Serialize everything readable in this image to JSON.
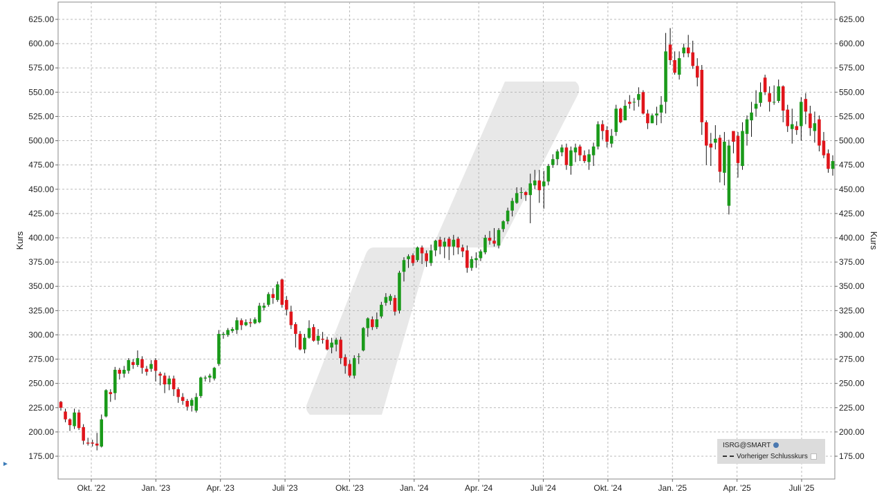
{
  "chart_data": {
    "type": "candlestick",
    "ylabel_left": "Kurs",
    "ylabel_right": "Kurs",
    "ylim": [
      160,
      640
    ],
    "yticks": [
      "625.00",
      "600.00",
      "575.00",
      "550.00",
      "525.00",
      "500.00",
      "475.00",
      "450.00",
      "425.00",
      "400.00",
      "375.00",
      "350.00",
      "325.00",
      "300.00",
      "275.00",
      "250.00",
      "225.00",
      "200.00",
      "175.00"
    ],
    "xticks": [
      "Okt. '22",
      "Jan. '23",
      "Apr. '23",
      "Juli '23",
      "Okt. '23",
      "Jan. '24",
      "Apr. '24",
      "Juli '24",
      "Okt. '24",
      "Jan. '25",
      "Apr. '25",
      "Juli '25"
    ],
    "grid": true,
    "legend": {
      "position": "bottom-right",
      "symbol": "ISRG@SMART",
      "previous_close_label": "Vorheriger Schlusskurs"
    },
    "colors": {
      "up": "#1a9a1a",
      "down": "#e0151b"
    },
    "candles": [
      [
        231,
        225,
        232,
        222
      ],
      [
        221,
        213,
        224,
        210
      ],
      [
        213,
        207,
        214,
        201
      ],
      [
        206,
        220,
        224,
        203
      ],
      [
        220,
        204,
        223,
        202
      ],
      [
        205,
        191,
        208,
        187
      ],
      [
        189,
        188,
        194,
        186
      ],
      [
        189,
        188,
        192,
        185
      ],
      [
        188,
        186,
        199,
        181
      ],
      [
        185,
        213,
        218,
        184
      ],
      [
        216,
        243,
        244,
        215
      ],
      [
        241,
        239,
        244,
        231
      ],
      [
        240,
        264,
        267,
        233
      ],
      [
        264,
        260,
        266,
        254
      ],
      [
        260,
        264,
        268,
        256
      ],
      [
        263,
        274,
        276,
        260
      ],
      [
        272,
        269,
        275,
        265
      ],
      [
        269,
        276,
        284,
        267
      ],
      [
        275,
        266,
        278,
        260
      ],
      [
        265,
        262,
        268,
        258
      ],
      [
        265,
        270,
        274,
        262
      ],
      [
        274,
        263,
        276,
        252
      ],
      [
        260,
        258,
        262,
        248
      ],
      [
        258,
        249,
        261,
        240
      ],
      [
        249,
        255,
        258,
        243
      ],
      [
        255,
        244,
        258,
        237
      ],
      [
        244,
        236,
        246,
        230
      ],
      [
        236,
        232,
        240,
        228
      ],
      [
        232,
        226,
        234,
        222
      ],
      [
        227,
        233,
        235,
        221
      ],
      [
        222,
        236,
        240,
        220
      ],
      [
        237,
        256,
        257,
        235
      ],
      [
        255,
        256,
        258,
        252
      ],
      [
        256,
        258,
        260,
        251
      ],
      [
        255,
        266,
        267,
        253
      ],
      [
        270,
        301,
        305,
        268
      ],
      [
        300,
        301,
        303,
        296
      ],
      [
        300,
        305,
        307,
        298
      ],
      [
        304,
        306,
        308,
        302
      ],
      [
        305,
        315,
        318,
        301
      ],
      [
        315,
        310,
        317,
        305
      ],
      [
        310,
        313,
        316,
        309
      ],
      [
        313,
        312,
        317,
        308
      ],
      [
        312,
        316,
        318,
        311
      ],
      [
        313,
        330,
        333,
        312
      ],
      [
        328,
        330,
        333,
        325
      ],
      [
        331,
        342,
        344,
        329
      ],
      [
        342,
        338,
        348,
        332
      ],
      [
        336,
        352,
        355,
        334
      ],
      [
        357,
        331,
        358,
        328
      ],
      [
        336,
        326,
        340,
        320
      ],
      [
        324,
        310,
        330,
        306
      ],
      [
        311,
        301,
        313,
        287
      ],
      [
        301,
        285,
        304,
        284
      ],
      [
        285,
        297,
        301,
        281
      ],
      [
        297,
        307,
        315,
        296
      ],
      [
        308,
        294,
        311,
        293
      ],
      [
        294,
        299,
        306,
        290
      ],
      [
        296,
        295,
        303,
        291
      ],
      [
        295,
        285,
        298,
        284
      ],
      [
        287,
        292,
        297,
        281
      ],
      [
        290,
        295,
        297,
        283
      ],
      [
        295,
        276,
        298,
        270
      ],
      [
        277,
        268,
        280,
        260
      ],
      [
        270,
        258,
        274,
        256
      ],
      [
        258,
        276,
        279,
        255
      ],
      [
        278,
        278,
        281,
        270
      ],
      [
        284,
        307,
        308,
        283
      ],
      [
        307,
        317,
        318,
        298
      ],
      [
        316,
        308,
        319,
        305
      ],
      [
        308,
        316,
        323,
        306
      ],
      [
        319,
        331,
        334,
        317
      ],
      [
        333,
        339,
        343,
        330
      ],
      [
        335,
        340,
        342,
        331
      ],
      [
        338,
        324,
        341,
        320
      ],
      [
        325,
        364,
        366,
        322
      ],
      [
        365,
        377,
        380,
        355
      ],
      [
        378,
        381,
        383,
        369
      ],
      [
        382,
        374,
        384,
        371
      ],
      [
        377,
        390,
        391,
        375
      ],
      [
        390,
        384,
        392,
        373
      ],
      [
        384,
        376,
        387,
        370
      ],
      [
        374,
        387,
        393,
        371
      ],
      [
        387,
        397,
        398,
        381
      ],
      [
        398,
        391,
        401,
        383
      ],
      [
        391,
        396,
        400,
        379
      ],
      [
        399,
        391,
        401,
        377
      ],
      [
        391,
        398,
        403,
        382
      ],
      [
        399,
        390,
        401,
        383
      ],
      [
        390,
        386,
        393,
        380
      ],
      [
        387,
        369,
        392,
        364
      ],
      [
        369,
        378,
        381,
        366
      ],
      [
        377,
        379,
        385,
        369
      ],
      [
        379,
        386,
        388,
        376
      ],
      [
        385,
        400,
        403,
        383
      ],
      [
        400,
        397,
        407,
        393
      ],
      [
        397,
        394,
        410,
        391
      ],
      [
        392,
        408,
        410,
        389
      ],
      [
        409,
        417,
        418,
        406
      ],
      [
        417,
        428,
        431,
        414
      ],
      [
        428,
        438,
        441,
        422
      ],
      [
        436,
        446,
        452,
        435
      ],
      [
        447,
        447,
        452,
        440
      ],
      [
        447,
        444,
        448,
        438
      ],
      [
        444,
        456,
        466,
        415
      ],
      [
        454,
        459,
        470,
        450
      ],
      [
        459,
        449,
        470,
        436
      ],
      [
        453,
        458,
        469,
        430
      ],
      [
        458,
        474,
        476,
        454
      ],
      [
        475,
        481,
        486,
        472
      ],
      [
        481,
        489,
        491,
        475
      ],
      [
        488,
        493,
        496,
        484
      ],
      [
        493,
        475,
        497,
        470
      ],
      [
        474,
        490,
        494,
        465
      ],
      [
        488,
        493,
        497,
        478
      ],
      [
        494,
        485,
        496,
        479
      ],
      [
        485,
        479,
        490,
        477
      ],
      [
        478,
        486,
        491,
        470
      ],
      [
        485,
        494,
        498,
        474
      ],
      [
        494,
        517,
        520,
        491
      ],
      [
        517,
        510,
        521,
        501
      ],
      [
        511,
        499,
        515,
        493
      ],
      [
        497,
        505,
        512,
        493
      ],
      [
        509,
        533,
        537,
        505
      ],
      [
        533,
        519,
        534,
        518
      ],
      [
        521,
        536,
        542,
        530
      ],
      [
        540,
        538,
        547,
        533
      ],
      [
        540,
        540,
        544,
        531
      ],
      [
        542,
        548,
        555,
        535
      ],
      [
        550,
        528,
        552,
        527
      ],
      [
        528,
        518,
        532,
        512
      ],
      [
        518,
        526,
        528,
        518
      ],
      [
        526,
        528,
        535,
        516
      ],
      [
        529,
        537,
        546,
        518
      ],
      [
        540,
        592,
        611,
        528
      ],
      [
        599,
        583,
        616,
        578
      ],
      [
        583,
        570,
        592,
        568
      ],
      [
        568,
        585,
        592,
        563
      ],
      [
        590,
        596,
        600,
        586
      ],
      [
        596,
        590,
        609,
        586
      ],
      [
        591,
        577,
        603,
        574
      ],
      [
        577,
        565,
        585,
        556
      ],
      [
        573,
        519,
        578,
        506
      ],
      [
        519,
        495,
        521,
        475
      ],
      [
        497,
        493,
        508,
        474
      ],
      [
        498,
        502,
        516,
        491
      ],
      [
        503,
        468,
        506,
        457
      ],
      [
        467,
        499,
        509,
        454
      ],
      [
        433,
        495,
        501,
        424
      ],
      [
        510,
        499,
        508,
        487
      ],
      [
        505,
        477,
        509,
        462
      ],
      [
        474,
        510,
        519,
        470
      ],
      [
        507,
        522,
        526,
        495
      ],
      [
        521,
        529,
        540,
        504
      ],
      [
        533,
        538,
        552,
        525
      ],
      [
        539,
        550,
        560,
        535
      ],
      [
        565,
        550,
        568,
        547
      ],
      [
        549,
        540,
        556,
        530
      ],
      [
        540,
        540,
        557,
        537
      ],
      [
        541,
        556,
        563,
        539
      ],
      [
        556,
        531,
        557,
        519
      ],
      [
        532,
        515,
        537,
        509
      ],
      [
        512,
        517,
        533,
        497
      ],
      [
        515,
        511,
        520,
        506
      ],
      [
        515,
        540,
        545,
        500
      ],
      [
        543,
        530,
        549,
        517
      ],
      [
        528,
        513,
        536,
        505
      ],
      [
        510,
        518,
        530,
        498
      ],
      [
        522,
        495,
        526,
        489
      ],
      [
        500,
        485,
        509,
        482
      ],
      [
        487,
        471,
        491,
        467
      ],
      [
        471,
        479,
        485,
        464
      ]
    ]
  }
}
